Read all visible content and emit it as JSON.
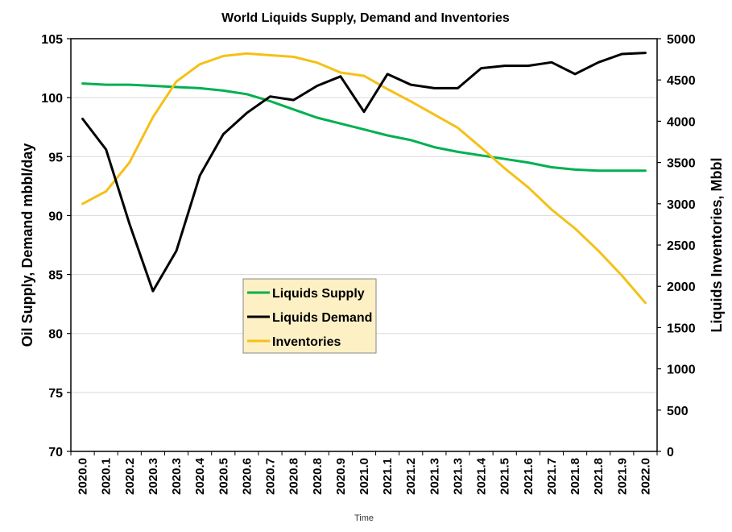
{
  "chart_data": {
    "type": "line",
    "title": "World Liquids Supply, Demand and Inventories",
    "xlabel": "Time",
    "ylabel_left": "Oil Supply, Demand mbbl/day",
    "ylabel_right": "Liquids Inventories, Mbbl",
    "ylim_left": [
      70,
      105
    ],
    "ylim_right": [
      0,
      5000
    ],
    "yticks_left": [
      "70",
      "75",
      "80",
      "85",
      "90",
      "95",
      "100",
      "105"
    ],
    "yticks_right": [
      "0",
      "500",
      "1000",
      "1500",
      "2000",
      "2500",
      "3000",
      "3500",
      "4000",
      "4500",
      "5000"
    ],
    "grid": "horizontal",
    "legend_position": "center-left",
    "categories": [
      "2020.0",
      "2020.1",
      "2020.2",
      "2020.3",
      "2020.3",
      "2020.4",
      "2020.5",
      "2020.6",
      "2020.7",
      "2020.8",
      "2020.8",
      "2020.9",
      "2021.0",
      "2021.1",
      "2021.2",
      "2021.3",
      "2021.3",
      "2021.4",
      "2021.5",
      "2021.6",
      "2021.7",
      "2021.8",
      "2021.8",
      "2021.9",
      "2022.0"
    ],
    "series": [
      {
        "name": "Liquids Supply",
        "axis": "left",
        "color": "#00b050",
        "values": [
          101.2,
          101.1,
          101.1,
          101.0,
          100.9,
          100.8,
          100.6,
          100.3,
          99.7,
          99.0,
          98.3,
          97.8,
          97.3,
          96.8,
          96.4,
          95.8,
          95.4,
          95.1,
          94.8,
          94.5,
          94.1,
          93.9,
          93.8,
          93.8,
          93.8
        ]
      },
      {
        "name": "Liquids Demand",
        "axis": "left",
        "color": "#000000",
        "values": [
          98.2,
          95.6,
          89.3,
          83.6,
          87.0,
          93.4,
          96.9,
          98.7,
          100.1,
          99.8,
          101.0,
          101.8,
          98.8,
          102.0,
          101.1,
          100.8,
          100.8,
          102.5,
          102.7,
          102.7,
          103.0,
          102.0,
          103.0,
          103.7,
          103.8
        ]
      },
      {
        "name": "Inventories",
        "axis": "right",
        "color": "#f5c017",
        "values": [
          3000,
          3150,
          3500,
          4050,
          4480,
          4690,
          4790,
          4820,
          4800,
          4780,
          4710,
          4590,
          4550,
          4390,
          4240,
          4080,
          3920,
          3680,
          3430,
          3200,
          2930,
          2700,
          2430,
          2130,
          1800
        ]
      }
    ]
  }
}
